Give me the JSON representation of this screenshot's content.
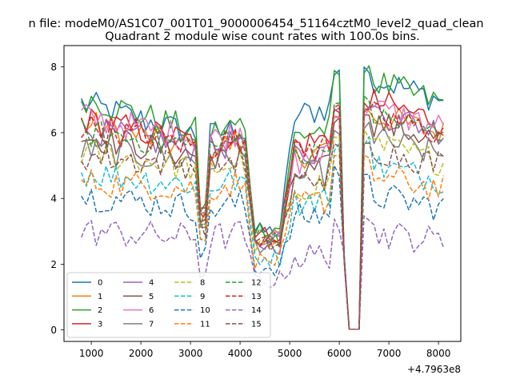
{
  "suptitle": "n file: modeM0/AS1C07_001T01_9000006454_51164cztM0_level2_quad_clean",
  "title": "Quadrant 2 module wise count rates with 100.0s bins.",
  "offset_label": "+4.7963e8",
  "chart_data": {
    "type": "line",
    "title": "Quadrant 2 module wise count rates with 100.0s bins.",
    "xlabel": "",
    "ylabel": "",
    "x_offset": 479630000,
    "x_range": [
      800,
      8100
    ],
    "xlim": [
      450,
      8450
    ],
    "ylim": [
      -0.35,
      8.65
    ],
    "xticks": [
      1000,
      2000,
      3000,
      4000,
      5000,
      6000,
      7000,
      8000
    ],
    "yticks": [
      0,
      2,
      4,
      6,
      8
    ],
    "xtick_labels": [
      "1000",
      "2000",
      "3000",
      "4000",
      "5000",
      "6000",
      "7000",
      "8000"
    ],
    "ytick_labels": [
      "0",
      "2",
      "4",
      "6",
      "8"
    ],
    "grid": false,
    "legend": {
      "placement": "lower-left",
      "columns": 4
    },
    "series": [
      {
        "name": "0",
        "color": "#1f77b4",
        "style": "solid",
        "levels": [
          6.9,
          5.9,
          3.0,
          6.5,
          8.1,
          7.5
        ]
      },
      {
        "name": "1",
        "color": "#ff7f0e",
        "style": "solid",
        "levels": [
          6.3,
          5.5,
          2.8,
          5.3,
          6.8,
          6.4
        ]
      },
      {
        "name": "2",
        "color": "#2ca02c",
        "style": "solid",
        "levels": [
          7.1,
          6.0,
          3.1,
          5.9,
          8.2,
          7.4
        ]
      },
      {
        "name": "3",
        "color": "#d62728",
        "style": "solid",
        "levels": [
          6.4,
          5.7,
          2.9,
          5.6,
          7.0,
          6.8
        ]
      },
      {
        "name": "4",
        "color": "#9467bd",
        "style": "solid",
        "levels": [
          6.1,
          5.5,
          2.6,
          5.3,
          6.8,
          6.5
        ]
      },
      {
        "name": "5",
        "color": "#8c564b",
        "style": "solid",
        "levels": [
          5.9,
          5.3,
          2.7,
          4.7,
          6.6,
          6.2
        ]
      },
      {
        "name": "6",
        "color": "#e377c2",
        "style": "solid",
        "levels": [
          6.5,
          5.8,
          2.8,
          5.1,
          6.8,
          6.6
        ]
      },
      {
        "name": "7",
        "color": "#7f7f7f",
        "style": "solid",
        "levels": [
          5.5,
          5.1,
          2.6,
          4.6,
          6.4,
          5.7
        ]
      },
      {
        "name": "8",
        "color": "#bcbd22",
        "style": "dashed",
        "levels": [
          5.4,
          4.9,
          2.5,
          4.3,
          6.2,
          5.5
        ]
      },
      {
        "name": "9",
        "color": "#17becf",
        "style": "dashed",
        "levels": [
          4.8,
          4.4,
          2.2,
          3.9,
          5.9,
          4.9
        ]
      },
      {
        "name": "10",
        "color": "#1f77b4",
        "style": "dashed",
        "levels": [
          4.1,
          3.7,
          1.9,
          3.4,
          5.1,
          4.0
        ]
      },
      {
        "name": "11",
        "color": "#ff7f0e",
        "style": "dashed",
        "levels": [
          4.5,
          4.3,
          2.1,
          3.8,
          5.6,
          4.6
        ]
      },
      {
        "name": "12",
        "color": "#2ca02c",
        "style": "dashed",
        "levels": [
          6.0,
          5.6,
          2.9,
          5.2,
          7.2,
          6.4
        ]
      },
      {
        "name": "13",
        "color": "#d62728",
        "style": "dashed",
        "levels": [
          6.2,
          5.6,
          2.8,
          5.4,
          7.1,
          6.4
        ]
      },
      {
        "name": "14",
        "color": "#9467bd",
        "style": "dashed",
        "levels": [
          3.0,
          2.8,
          1.5,
          2.2,
          3.5,
          2.9
        ]
      },
      {
        "name": "15",
        "color": "#8c564b",
        "style": "dashed",
        "levels": [
          5.3,
          5.0,
          2.6,
          4.5,
          6.0,
          5.4
        ]
      }
    ]
  }
}
